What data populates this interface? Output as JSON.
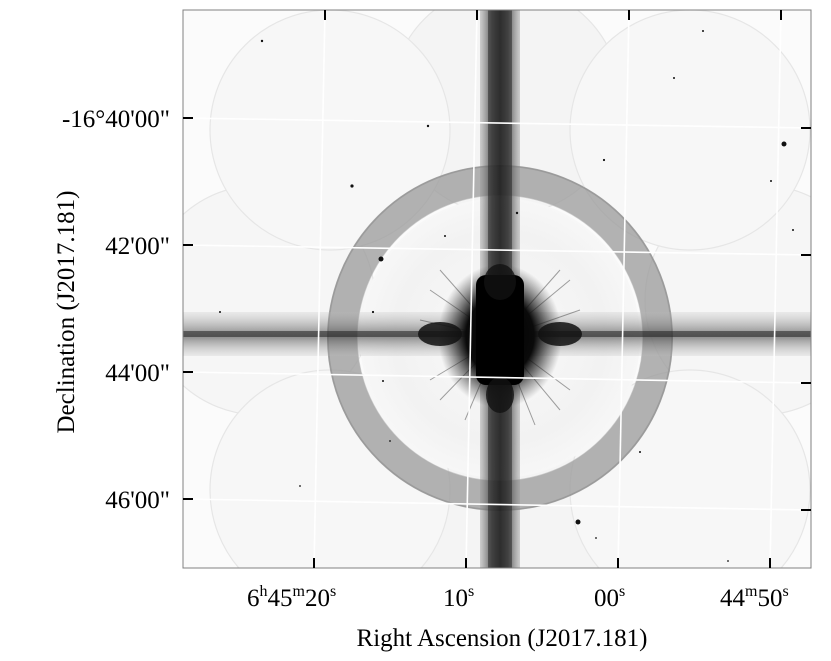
{
  "figure": {
    "x_axis_label": "Right Ascension (J2017.181)",
    "y_axis_label": "Declination (J2017.181)",
    "x_ticks": [
      {
        "parts": [
          "6",
          "h",
          "45",
          "m",
          "20",
          "s"
        ]
      },
      {
        "parts": [
          "10",
          "s"
        ]
      },
      {
        "parts": [
          "00",
          "s"
        ]
      },
      {
        "parts": [
          "44",
          "m",
          "50",
          "s"
        ]
      }
    ],
    "y_ticks": [
      "-16°40'00\"",
      "42'00\"",
      "44'00\"",
      "46'00\""
    ],
    "colormap": "grayscale-inverted",
    "grid_color": "#ffffff"
  }
}
